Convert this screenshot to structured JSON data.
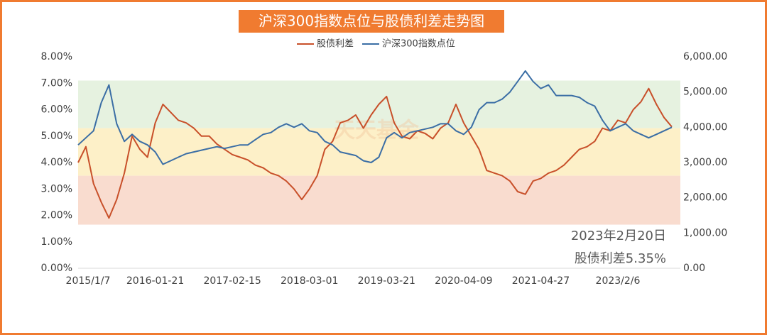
{
  "chart_data": {
    "type": "line",
    "title": "沪深300指数点位与股债利差走势图",
    "watermark": "天天基金",
    "annotations": [
      "2023年2月20日",
      "股债利差5.35%"
    ],
    "categories": [
      "2015/1/7",
      null,
      null,
      null,
      null,
      null,
      null,
      null,
      null,
      null,
      "2016-01-21",
      null,
      null,
      null,
      null,
      null,
      null,
      null,
      null,
      null,
      "2017-02-15",
      null,
      null,
      null,
      null,
      null,
      null,
      null,
      null,
      null,
      "2018-03-01",
      null,
      null,
      null,
      null,
      null,
      null,
      null,
      null,
      null,
      "2019-03-21",
      null,
      null,
      null,
      null,
      null,
      null,
      null,
      null,
      null,
      "2020-04-09",
      null,
      null,
      null,
      null,
      null,
      null,
      null,
      null,
      null,
      "2021-04-27",
      null,
      null,
      null,
      null,
      null,
      null,
      null,
      null,
      null,
      "2023/2/6",
      null,
      null,
      null,
      null,
      null,
      null,
      null
    ],
    "series": [
      {
        "name": "股债利差",
        "color": "#c8502a",
        "values": [
          4.0,
          4.6,
          3.2,
          2.5,
          1.9,
          2.6,
          3.6,
          5.0,
          4.5,
          4.2,
          5.5,
          6.2,
          5.9,
          5.6,
          5.5,
          5.3,
          5.0,
          5.0,
          4.7,
          4.5,
          4.3,
          4.2,
          4.1,
          3.9,
          3.8,
          3.6,
          3.5,
          3.3,
          3.0,
          2.6,
          3.0,
          3.5,
          4.5,
          4.8,
          5.5,
          5.6,
          5.8,
          5.3,
          5.8,
          6.2,
          6.5,
          5.5,
          5.0,
          4.9,
          5.2,
          5.1,
          4.9,
          5.3,
          5.5,
          6.2,
          5.5,
          5.0,
          4.5,
          3.7,
          3.6,
          3.5,
          3.3,
          2.9,
          2.8,
          3.3,
          3.4,
          3.6,
          3.7,
          3.9,
          4.2,
          4.5,
          4.6,
          4.8,
          5.3,
          5.2,
          5.6,
          5.5,
          6.0,
          6.3,
          6.8,
          6.2,
          5.7,
          5.35
        ]
      },
      {
        "name": "沪深300指数点位",
        "color": "#3b6ea5",
        "axis": "y2",
        "values": [
          3500,
          3700,
          3900,
          4700,
          5200,
          4100,
          3600,
          3800,
          3600,
          3500,
          3300,
          2950,
          3050,
          3150,
          3250,
          3300,
          3350,
          3400,
          3450,
          3400,
          3450,
          3500,
          3500,
          3650,
          3800,
          3850,
          4000,
          4100,
          4000,
          4100,
          3900,
          3850,
          3600,
          3500,
          3300,
          3250,
          3200,
          3050,
          3000,
          3150,
          3700,
          3850,
          3700,
          3850,
          3900,
          3950,
          4000,
          4100,
          4100,
          3900,
          3800,
          4000,
          4500,
          4700,
          4700,
          4800,
          5000,
          5300,
          5600,
          5300,
          5100,
          5200,
          4900,
          4900,
          4900,
          4850,
          4700,
          4600,
          4200,
          3900,
          4000,
          4100,
          3900,
          3800,
          3700,
          3800,
          3900,
          4000
        ]
      }
    ],
    "bands": [
      {
        "from": 5.3,
        "to": 7.1,
        "color": "#e6f2e0"
      },
      {
        "from": 3.5,
        "to": 5.3,
        "color": "#fdf0c8"
      },
      {
        "from": 1.65,
        "to": 3.5,
        "color": "#f9dccf"
      }
    ],
    "ylim": [
      0,
      8
    ],
    "yticks": [
      {
        "value": 0,
        "label": "0.00%"
      },
      {
        "value": 1,
        "label": "1.00%"
      },
      {
        "value": 2,
        "label": "2.00%"
      },
      {
        "value": 3,
        "label": "3.00%"
      },
      {
        "value": 4,
        "label": "4.00%"
      },
      {
        "value": 5,
        "label": "5.00%"
      },
      {
        "value": 6,
        "label": "6.00%"
      },
      {
        "value": 7,
        "label": "7.00%"
      },
      {
        "value": 8,
        "label": "8.00%"
      }
    ],
    "y2lim": [
      0,
      6000
    ],
    "y2ticks": [
      {
        "value": 0,
        "label": "0.00"
      },
      {
        "value": 1000,
        "label": "1,000.00"
      },
      {
        "value": 2000,
        "label": "2,000.00"
      },
      {
        "value": 3000,
        "label": "3,000.00"
      },
      {
        "value": 4000,
        "label": "4,000.00"
      },
      {
        "value": 5000,
        "label": "5,000.00"
      },
      {
        "value": 6000,
        "label": "6,000.00"
      }
    ],
    "grid": false
  }
}
